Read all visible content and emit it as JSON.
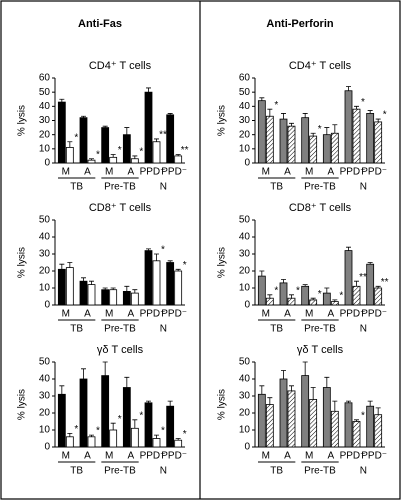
{
  "headers": [
    "Anti-Fas",
    "Anti-Perforin"
  ],
  "chart_data": [
    {
      "type": "bar",
      "title": "CD4⁺ T cells",
      "ylabel": "% lysis",
      "categories": [
        "M",
        "A",
        "M",
        "A",
        "PPD⁺",
        "PPD⁻"
      ],
      "group_labels": [
        "TB",
        "Pre-TB",
        "N"
      ],
      "ylim": [
        0,
        60
      ],
      "yticks": [
        0,
        10,
        20,
        30,
        40,
        50,
        60
      ],
      "series": [
        {
          "color": "#000000",
          "values": [
            43,
            32,
            25,
            20,
            50,
            34
          ],
          "errors": [
            2,
            1,
            1,
            5,
            3,
            1
          ]
        },
        {
          "color": "#ffffff",
          "values": [
            11,
            2,
            4,
            3,
            15,
            5
          ],
          "errors": [
            4,
            1,
            2,
            2,
            2,
            1
          ],
          "annotations": [
            "*",
            "*",
            "*",
            "*",
            "**",
            "**"
          ]
        }
      ]
    },
    {
      "type": "bar",
      "title": "CD8⁺ T cells",
      "ylabel": "% lysis",
      "categories": [
        "M",
        "A",
        "M",
        "A",
        "PPD⁺",
        "PPD⁻"
      ],
      "group_labels": [
        "TB",
        "Pre-TB",
        "N"
      ],
      "ylim": [
        0,
        50
      ],
      "yticks": [
        0,
        10,
        20,
        30,
        40,
        50
      ],
      "series": [
        {
          "color": "#000000",
          "values": [
            21,
            14,
            9,
            8,
            32,
            25
          ],
          "errors": [
            3,
            2,
            1,
            3,
            1,
            1
          ]
        },
        {
          "color": "#ffffff",
          "values": [
            22,
            12,
            9,
            7,
            26,
            20
          ],
          "errors": [
            3,
            2,
            1,
            2,
            4,
            1
          ],
          "annotations": [
            null,
            null,
            null,
            null,
            "*",
            "*"
          ]
        }
      ]
    },
    {
      "type": "bar",
      "title": "γδ T cells",
      "ylabel": "% lysis",
      "categories": [
        "M",
        "A",
        "M",
        "A",
        "PPD⁺",
        "PPD⁻"
      ],
      "group_labels": [
        "TB",
        "Pre-TB",
        "N"
      ],
      "ylim": [
        0,
        50
      ],
      "yticks": [
        0,
        10,
        20,
        30,
        40,
        50
      ],
      "series": [
        {
          "color": "#000000",
          "values": [
            31,
            40,
            42,
            35,
            26,
            24
          ],
          "errors": [
            5,
            6,
            8,
            6,
            1,
            3
          ]
        },
        {
          "color": "#ffffff",
          "values": [
            6,
            6,
            10,
            11,
            5,
            4
          ],
          "errors": [
            2,
            1,
            4,
            5,
            2,
            1
          ],
          "annotations": [
            "*",
            "*",
            "*",
            "*",
            "*",
            "*"
          ]
        }
      ]
    },
    {
      "type": "bar",
      "title": "CD4⁺ T cells",
      "ylabel": "% lysis",
      "categories": [
        "M",
        "A",
        "M",
        "A",
        "PPD⁺",
        "PPD⁻"
      ],
      "group_labels": [
        "TB",
        "Pre-TB",
        "N"
      ],
      "ylim": [
        0,
        60
      ],
      "yticks": [
        0,
        10,
        20,
        30,
        40,
        50,
        60
      ],
      "series": [
        {
          "color": "#808080",
          "values": [
            44,
            31,
            32,
            20,
            51,
            35
          ],
          "errors": [
            2,
            4,
            3,
            5,
            3,
            2
          ]
        },
        {
          "color": "#ffffff",
          "hatch": true,
          "values": [
            33,
            26,
            19,
            21,
            38,
            29
          ],
          "errors": [
            5,
            2,
            2,
            6,
            2,
            2
          ],
          "annotations": [
            "*",
            null,
            "*",
            null,
            "*",
            "*"
          ]
        }
      ]
    },
    {
      "type": "bar",
      "title": "CD8⁺ T cells",
      "ylabel": "% lysis",
      "categories": [
        "M",
        "A",
        "M",
        "A",
        "PPD⁺",
        "PPD⁻"
      ],
      "group_labels": [
        "TB",
        "Pre-TB",
        "N"
      ],
      "ylim": [
        0,
        50
      ],
      "yticks": [
        0,
        10,
        20,
        30,
        40,
        50
      ],
      "series": [
        {
          "color": "#808080",
          "values": [
            17,
            13,
            11,
            7,
            32,
            24
          ],
          "errors": [
            3,
            2,
            1,
            3,
            2,
            1
          ]
        },
        {
          "color": "#ffffff",
          "hatch": true,
          "values": [
            4,
            4,
            3,
            2,
            11,
            10
          ],
          "errors": [
            2,
            2,
            1,
            1,
            3,
            1
          ],
          "annotations": [
            "*",
            "*",
            "*",
            "*",
            "**",
            "**"
          ]
        }
      ]
    },
    {
      "type": "bar",
      "title": "γδ T cells",
      "ylabel": "% lysis",
      "categories": [
        "M",
        "A",
        "M",
        "A",
        "PPD⁺",
        "PPD⁻"
      ],
      "group_labels": [
        "TB",
        "Pre-TB",
        "N"
      ],
      "ylim": [
        0,
        50
      ],
      "yticks": [
        0,
        10,
        20,
        30,
        40,
        50
      ],
      "series": [
        {
          "color": "#808080",
          "values": [
            31,
            40,
            42,
            35,
            26,
            24
          ],
          "errors": [
            5,
            5,
            8,
            6,
            1,
            3
          ]
        },
        {
          "color": "#ffffff",
          "hatch": true,
          "values": [
            25,
            33,
            28,
            21,
            15,
            19
          ],
          "errors": [
            4,
            3,
            7,
            6,
            1,
            4
          ],
          "annotations": [
            null,
            null,
            null,
            null,
            "*",
            null
          ]
        }
      ]
    }
  ]
}
